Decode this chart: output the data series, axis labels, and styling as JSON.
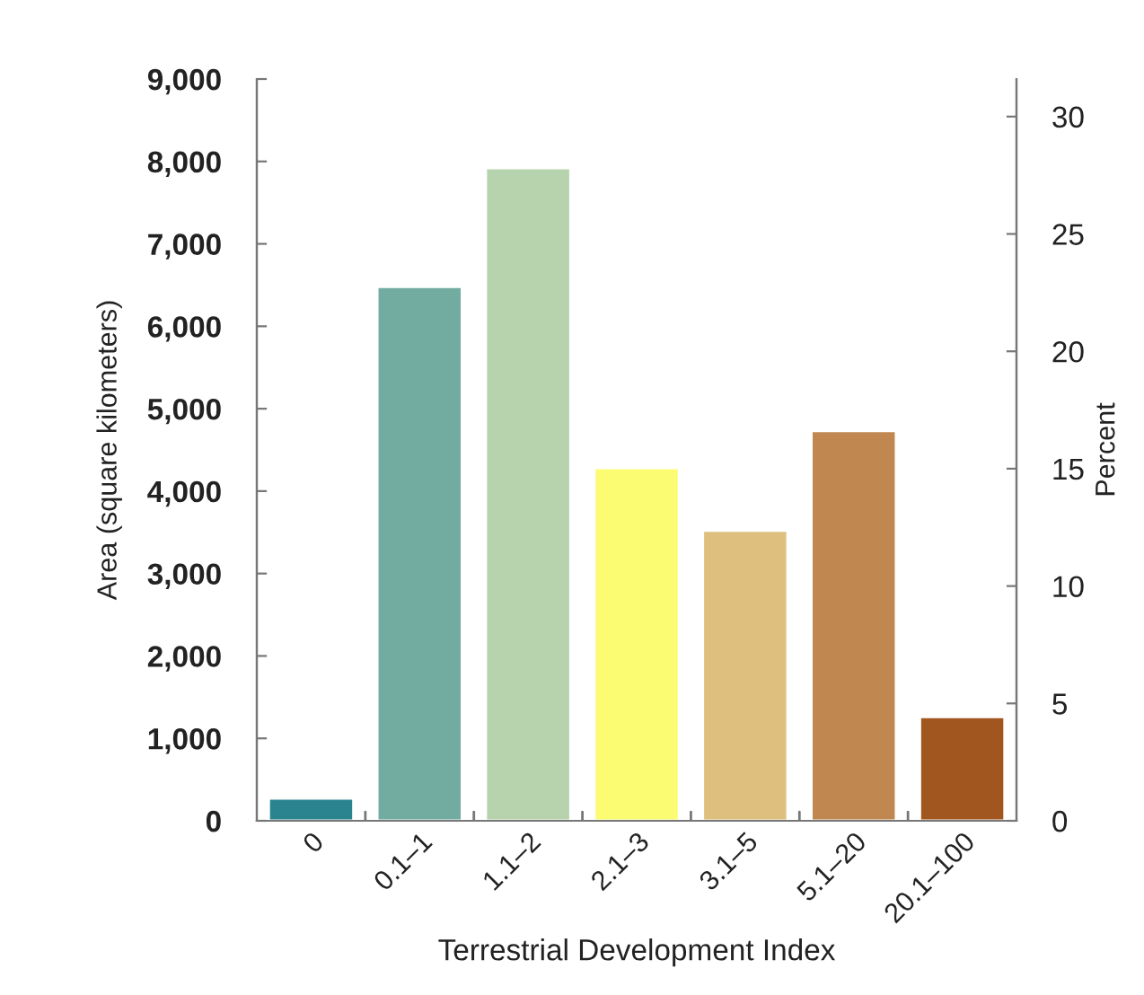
{
  "chart_data": {
    "type": "bar",
    "xlabel": "Terrestrial Development Index",
    "ylabel": "Area (square kilometers)",
    "y2label": "Percent",
    "categories": [
      "0",
      "0.1–1",
      "1.1–2",
      "2.1–3",
      "3.1–5",
      "5.1–20",
      "20.1–100"
    ],
    "values": [
      270,
      6480,
      7920,
      4280,
      3520,
      4730,
      1260
    ],
    "colors": [
      "#2a8490",
      "#72aca0",
      "#b6d3ad",
      "#fcfc72",
      "#dfbf7e",
      "#c08850",
      "#a0561e"
    ],
    "ylim": [
      0,
      9000
    ],
    "yticks": [
      {
        "value": 0,
        "label": "0"
      },
      {
        "value": 1000,
        "label": "1,000"
      },
      {
        "value": 2000,
        "label": "2,000"
      },
      {
        "value": 3000,
        "label": "3,000"
      },
      {
        "value": 4000,
        "label": "4,000"
      },
      {
        "value": 5000,
        "label": "5,000"
      },
      {
        "value": 6000,
        "label": "6,000"
      },
      {
        "value": 7000,
        "label": "7,000"
      },
      {
        "value": 8000,
        "label": "8,000"
      },
      {
        "value": 9000,
        "label": "9,000"
      }
    ],
    "y2lim": [
      0,
      31.6
    ],
    "y2ticks": [
      0,
      5,
      10,
      15,
      20,
      25,
      30
    ],
    "grid": false,
    "legend": false
  }
}
